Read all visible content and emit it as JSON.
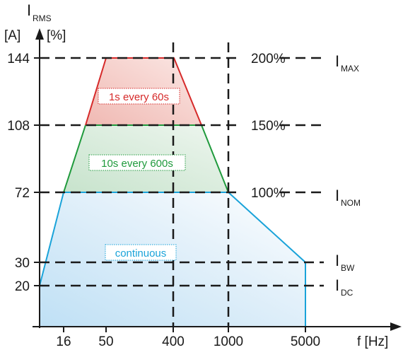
{
  "colors": {
    "axis": "#1a1a1a",
    "dash": "#1a1a1a",
    "red": "#d62a2a",
    "red_fill": "#f3c7c3",
    "green": "#1f9a3c",
    "green_fill": "#cfe6d2",
    "blue": "#1aa3d9",
    "blue_fill": "#d8ebf7"
  },
  "y_axis": {
    "symbol_main": "I",
    "symbol_sub": "RMS",
    "unit_abs": "[A]",
    "unit_pct": "[%]",
    "ticks": [
      "144",
      "108",
      "72",
      "30",
      "20"
    ]
  },
  "x_axis": {
    "label": "f [Hz]",
    "ticks": [
      "16",
      "50",
      "400",
      "1000",
      "5000"
    ]
  },
  "right_labels": {
    "pct_200": "200%",
    "pct_150": "150%",
    "pct_100": "100%",
    "imax_main": "I",
    "imax_sub": "MAX",
    "inom_main": "I",
    "inom_sub": "NOM",
    "ibw_main": "I",
    "ibw_sub": "BW",
    "idc_main": "I",
    "idc_sub": "DC"
  },
  "regions": {
    "red_label": "1s every 60s",
    "green_label": "10s every 600s",
    "blue_label": "continuous"
  }
}
